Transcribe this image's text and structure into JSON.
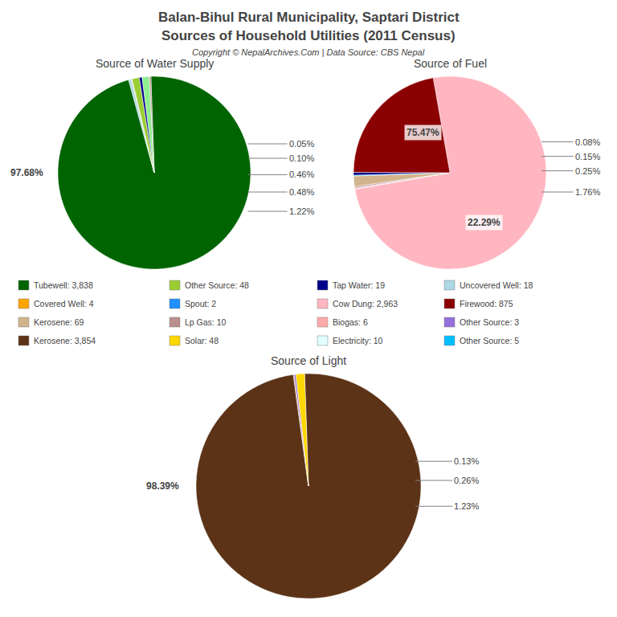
{
  "title": "Balan-Bihul Rural Municipality, Saptari District",
  "subtitle": "Sources of Household Utilities (2011 Census)",
  "annotations": [
    "Copyright © NepalArchives.Com | Data Source: CBS Nepal"
  ],
  "legend_items": [
    {
      "label": "Tubewell: 3,838",
      "color": "#006400"
    },
    {
      "label": "Other Source: 48",
      "color": "#9acd32"
    },
    {
      "label": "Tap Water: 19",
      "color": "#00008b"
    },
    {
      "label": "Uncovered Well: 18",
      "color": "#add8e6"
    },
    {
      "label": "Covered Well: 4",
      "color": "#ffa500"
    },
    {
      "label": "Spout: 2",
      "color": "#1e90ff"
    },
    {
      "label": "Cow Dung: 2,963",
      "color": "#ffb6c1"
    },
    {
      "label": "Firewood: 875",
      "color": "#8b0000"
    },
    {
      "label": "Kerosene: 69",
      "color": "#d2b48c"
    },
    {
      "label": "Lp Gas: 10",
      "color": "#bc8f8f"
    },
    {
      "label": "Biogas: 6",
      "color": "#ffaaaa"
    },
    {
      "label": "Other Source: 3",
      "color": "#9370db"
    },
    {
      "label": "Kerosene: 3,854",
      "color": "#5c3317"
    },
    {
      "label": "Solar: 48",
      "color": "#ffd700"
    },
    {
      "label": "Electricity: 10",
      "color": "#e0ffff"
    },
    {
      "label": "Other Source: 5",
      "color": "#00bfff"
    }
  ],
  "chart_data": [
    {
      "type": "pie",
      "title": "Source of Water Supply",
      "values": [
        3838,
        18,
        4,
        2,
        48,
        19,
        48,
        10
      ],
      "colors": [
        "#006400",
        "#add8e6",
        "#ffa500",
        "#1e90ff",
        "#9acd32",
        "#00008b",
        "#90ee90",
        "#bc8f8f"
      ],
      "annotations": [
        "97.68%",
        "0.05%",
        "0.10%",
        "0.46%",
        "0.48%",
        "1.22%"
      ]
    },
    {
      "type": "pie",
      "title": "Source of Fuel",
      "values": [
        2963,
        3,
        6,
        10,
        69,
        5,
        19,
        875
      ],
      "colors": [
        "#ffb6c1",
        "#9370db",
        "#ffaaaa",
        "#bc8f8f",
        "#d2b48c",
        "#00bfff",
        "#00008b",
        "#8b0000"
      ],
      "annotations": [
        "75.47%",
        "22.29%",
        "0.08%",
        "0.15%",
        "0.25%",
        "1.76%"
      ]
    },
    {
      "type": "pie",
      "title": "Source of Light",
      "values": [
        3854,
        5,
        10,
        48
      ],
      "colors": [
        "#5c3317",
        "#d2691e",
        "#9370db",
        "#ffd700"
      ],
      "annotations": [
        "98.39%",
        "0.13%",
        "0.26%",
        "1.23%"
      ]
    }
  ]
}
